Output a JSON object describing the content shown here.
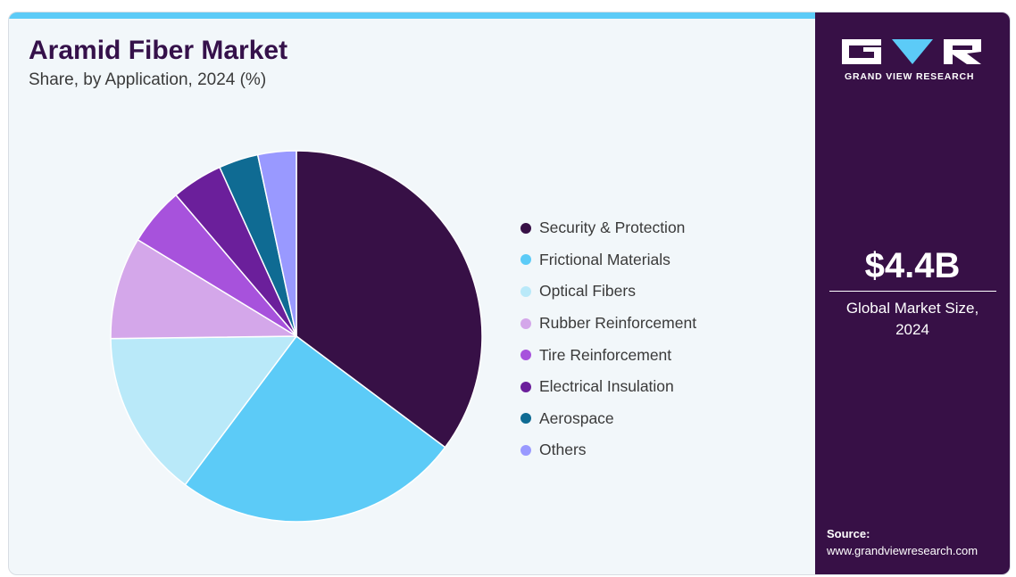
{
  "header": {
    "title": "Aramid Fiber Market",
    "subtitle": "Share, by Application, 2024 (%)"
  },
  "brand": {
    "logo_text": "GRAND VIEW RESEARCH",
    "logo_icon": "gvr-logo-icon"
  },
  "side_panel": {
    "market_size": "$4.4B",
    "market_size_label": "Global Market Size, 2024",
    "source_label": "Source:",
    "source_url": "www.grandviewresearch.com"
  },
  "colors": {
    "accent_bar": "#5ccbf7",
    "side_panel": "#371046",
    "title": "#35114a",
    "background": "#f2f7fa"
  },
  "chart_data": {
    "type": "pie",
    "title": "Aramid Fiber Market",
    "subtitle": "Share, by Application, 2024 (%)",
    "legend_placement": "right",
    "start_angle": "12 o'clock, clockwise",
    "categories": [
      "Security & Protection",
      "Frictional Materials",
      "Optical Fibers",
      "Rubber Reinforcement",
      "Tire Reinforcement",
      "Electrical Insulation",
      "Aerospace",
      "Others"
    ],
    "values": [
      34.8,
      24.7,
      14.4,
      8.8,
      5.0,
      4.4,
      3.4,
      3.3
    ],
    "colors": [
      "#371046",
      "#5ccbf7",
      "#b9e9f9",
      "#d4a7ea",
      "#a752dc",
      "#6b1f9b",
      "#0f6b93",
      "#9999ff"
    ]
  }
}
